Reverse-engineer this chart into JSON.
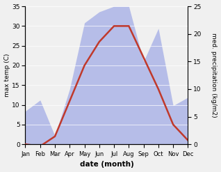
{
  "months": [
    "Jan",
    "Feb",
    "Mar",
    "Apr",
    "May",
    "Jun",
    "Jul",
    "Aug",
    "Sep",
    "Oct",
    "Nov",
    "Dec"
  ],
  "temperature": [
    0.0,
    -0.5,
    2.0,
    11.0,
    20.0,
    26.0,
    30.0,
    30.0,
    22.0,
    14.0,
    5.0,
    1.0
  ],
  "precipitation": [
    6.0,
    8.0,
    1.5,
    10.0,
    22.0,
    24.0,
    25.0,
    25.0,
    15.0,
    21.0,
    7.0,
    8.5
  ],
  "temp_color": "#c0392b",
  "precip_color": "#b0b8e8",
  "temp_ylim": [
    0,
    35
  ],
  "precip_ylim": [
    0,
    25
  ],
  "temp_yticks": [
    0,
    5,
    10,
    15,
    20,
    25,
    30,
    35
  ],
  "precip_yticks": [
    0,
    5,
    10,
    15,
    20,
    25
  ],
  "xlabel": "date (month)",
  "ylabel_left": "max temp (C)",
  "ylabel_right": "med. precipitation (kg/m2)",
  "bg_color": "#e8e8e8",
  "figsize": [
    3.18,
    2.47
  ],
  "dpi": 100
}
